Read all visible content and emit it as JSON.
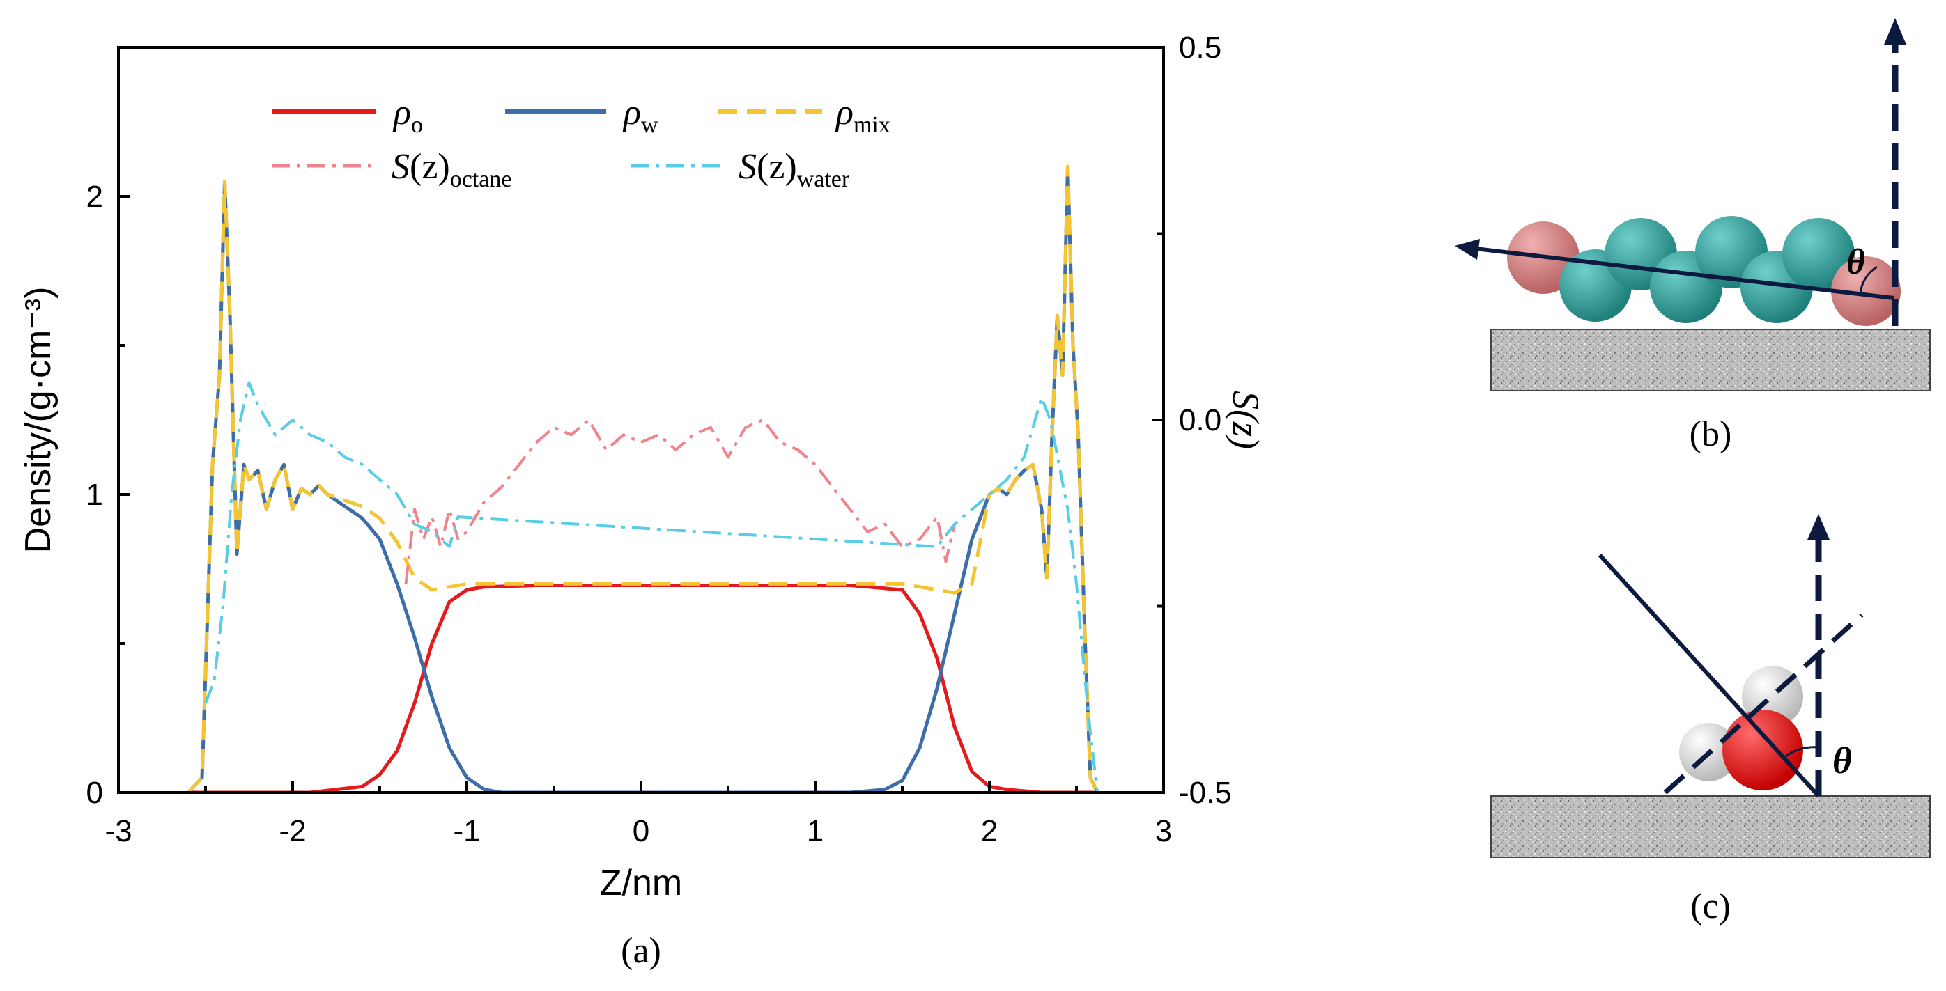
{
  "chart_data": {
    "type": "line",
    "xlabel": "Z/nm",
    "ylabel": "Density/(g·cm⁻³)",
    "y2label": "S(z)",
    "xlim": [
      -3,
      3
    ],
    "ylim": [
      0,
      2.5
    ],
    "y2lim": [
      -0.5,
      0.5
    ],
    "x_ticks": [
      "-3",
      "-2",
      "-1",
      "0",
      "1",
      "2",
      "3"
    ],
    "y_ticks": [
      "0",
      "1",
      "2"
    ],
    "y2_ticks": [
      "-0.5",
      "0.0",
      "0.5"
    ],
    "legend": {
      "rho_o": {
        "symbol": "ρ",
        "sub": "o"
      },
      "rho_w": {
        "symbol": "ρ",
        "sub": "w"
      },
      "rho_mix": {
        "symbol": "ρ",
        "sub": "mix"
      },
      "s_octane": {
        "symbol": "S",
        "arg": "(z)",
        "sub": "octane"
      },
      "s_water": {
        "symbol": "S",
        "arg": "(z)",
        "sub": "water"
      }
    },
    "series": [
      {
        "name": "rho_o",
        "color": "#e41a1c",
        "dash": "solid",
        "axis": "left",
        "x": [
          -2.6,
          -1.9,
          -1.6,
          -1.5,
          -1.4,
          -1.3,
          -1.2,
          -1.1,
          -1.0,
          -0.9,
          -0.6,
          0,
          0.6,
          1.2,
          1.5,
          1.6,
          1.7,
          1.8,
          1.9,
          2.0,
          2.1,
          2.3,
          2.6
        ],
        "y": [
          0,
          0,
          0.02,
          0.06,
          0.14,
          0.3,
          0.5,
          0.64,
          0.68,
          0.69,
          0.695,
          0.695,
          0.695,
          0.695,
          0.68,
          0.6,
          0.45,
          0.22,
          0.07,
          0.02,
          0.01,
          0,
          0
        ]
      },
      {
        "name": "rho_w",
        "color": "#3d6ea8",
        "dash": "solid",
        "axis": "left",
        "x": [
          -2.6,
          -2.52,
          -2.46,
          -2.42,
          -2.39,
          -2.36,
          -2.32,
          -2.28,
          -2.25,
          -2.2,
          -2.15,
          -2.1,
          -2.05,
          -2.0,
          -1.95,
          -1.9,
          -1.85,
          -1.8,
          -1.75,
          -1.7,
          -1.6,
          -1.5,
          -1.4,
          -1.3,
          -1.2,
          -1.1,
          -1.0,
          -0.9,
          -0.8,
          -0.5,
          0,
          0.5,
          1.0,
          1.2,
          1.4,
          1.5,
          1.6,
          1.7,
          1.8,
          1.9,
          2.0,
          2.05,
          2.1,
          2.15,
          2.2,
          2.25,
          2.3,
          2.33,
          2.36,
          2.39,
          2.42,
          2.45,
          2.48,
          2.51,
          2.55,
          2.58,
          2.62
        ],
        "y": [
          0,
          0.05,
          1.1,
          1.4,
          2.05,
          1.6,
          0.8,
          1.1,
          1.05,
          1.08,
          0.95,
          1.05,
          1.1,
          0.95,
          1.02,
          1.0,
          1.03,
          1.0,
          0.98,
          0.96,
          0.92,
          0.85,
          0.7,
          0.52,
          0.32,
          0.15,
          0.05,
          0.01,
          0,
          0,
          0,
          0,
          0,
          0,
          0.01,
          0.04,
          0.15,
          0.35,
          0.6,
          0.85,
          1.0,
          1.02,
          1.0,
          1.05,
          1.08,
          1.1,
          0.95,
          0.72,
          1.2,
          1.6,
          1.4,
          2.1,
          1.5,
          1.2,
          0.5,
          0.05,
          0
        ]
      },
      {
        "name": "rho_mix",
        "color": "#f5c431",
        "dash": "dashed",
        "axis": "left",
        "x": [
          -2.6,
          -2.52,
          -2.46,
          -2.42,
          -2.39,
          -2.36,
          -2.32,
          -2.28,
          -2.25,
          -2.2,
          -2.15,
          -2.1,
          -2.05,
          -2.0,
          -1.95,
          -1.9,
          -1.85,
          -1.8,
          -1.7,
          -1.6,
          -1.5,
          -1.4,
          -1.3,
          -1.2,
          -1.1,
          -1.0,
          -0.5,
          0,
          0.5,
          1.0,
          1.5,
          1.6,
          1.7,
          1.8,
          1.9,
          2.0,
          2.05,
          2.1,
          2.15,
          2.2,
          2.25,
          2.3,
          2.33,
          2.36,
          2.39,
          2.42,
          2.45,
          2.48,
          2.51,
          2.55,
          2.58,
          2.62
        ],
        "y": [
          0,
          0.05,
          1.1,
          1.4,
          2.05,
          1.6,
          0.8,
          1.1,
          1.05,
          1.08,
          0.95,
          1.05,
          1.1,
          0.95,
          1.02,
          1.0,
          1.03,
          1.0,
          0.98,
          0.96,
          0.92,
          0.84,
          0.72,
          0.68,
          0.69,
          0.7,
          0.7,
          0.7,
          0.7,
          0.7,
          0.7,
          0.69,
          0.68,
          0.67,
          0.7,
          1.0,
          1.02,
          1.0,
          1.05,
          1.08,
          1.1,
          0.95,
          0.72,
          1.2,
          1.6,
          1.4,
          2.1,
          1.5,
          1.2,
          0.5,
          0.05,
          0
        ]
      },
      {
        "name": "s_octane",
        "color": "#f0838c",
        "dash": "dashdot",
        "axis": "right",
        "x": [
          -1.35,
          -1.3,
          -1.25,
          -1.2,
          -1.15,
          -1.1,
          -1.05,
          -1.0,
          -0.9,
          -0.8,
          -0.7,
          -0.6,
          -0.5,
          -0.4,
          -0.3,
          -0.2,
          -0.1,
          0,
          0.1,
          0.2,
          0.3,
          0.4,
          0.5,
          0.6,
          0.7,
          0.8,
          0.9,
          1.0,
          1.1,
          1.2,
          1.3,
          1.4,
          1.5,
          1.6,
          1.7,
          1.75,
          1.8
        ],
        "y": [
          -0.22,
          -0.12,
          -0.16,
          -0.13,
          -0.17,
          -0.12,
          -0.16,
          -0.15,
          -0.11,
          -0.09,
          -0.06,
          -0.03,
          -0.01,
          -0.02,
          0.0,
          -0.04,
          -0.02,
          -0.03,
          -0.02,
          -0.04,
          -0.02,
          -0.01,
          -0.05,
          -0.01,
          0.0,
          -0.03,
          -0.04,
          -0.06,
          -0.09,
          -0.12,
          -0.15,
          -0.14,
          -0.17,
          -0.16,
          -0.13,
          -0.19,
          -0.14
        ]
      },
      {
        "name": "s_water",
        "color": "#57cde6",
        "dash": "dashdot",
        "axis": "right",
        "x": [
          -2.5,
          -2.45,
          -2.4,
          -2.35,
          -2.3,
          -2.25,
          -2.2,
          -2.1,
          -2.0,
          -1.9,
          -1.8,
          -1.7,
          -1.6,
          -1.5,
          -1.4,
          -1.3,
          -1.2,
          -1.1,
          -1.05,
          1.7,
          1.8,
          1.9,
          2.0,
          2.1,
          2.2,
          2.3,
          2.35,
          2.4,
          2.45,
          2.5,
          2.55,
          2.58,
          2.62
        ],
        "y": [
          -0.38,
          -0.35,
          -0.25,
          -0.1,
          0.0,
          0.05,
          0.02,
          -0.02,
          0.0,
          -0.02,
          -0.03,
          -0.05,
          -0.06,
          -0.08,
          -0.1,
          -0.14,
          -0.15,
          -0.17,
          -0.13,
          -0.17,
          -0.14,
          -0.12,
          -0.1,
          -0.08,
          -0.05,
          0.03,
          0.0,
          -0.06,
          -0.12,
          -0.22,
          -0.35,
          -0.42,
          -0.5
        ]
      }
    ]
  },
  "panels": {
    "a": "(a)",
    "b": "(b)",
    "c": "(c)"
  },
  "theta": "θ",
  "colors": {
    "axis": "#000000",
    "arrow": "#0d1a3f",
    "octane_head": "#d07a7a",
    "octane_body": "#2f9a96",
    "water_o": "#e01010",
    "water_h": "#e6e6e6",
    "surface": "#b5b5b5"
  }
}
